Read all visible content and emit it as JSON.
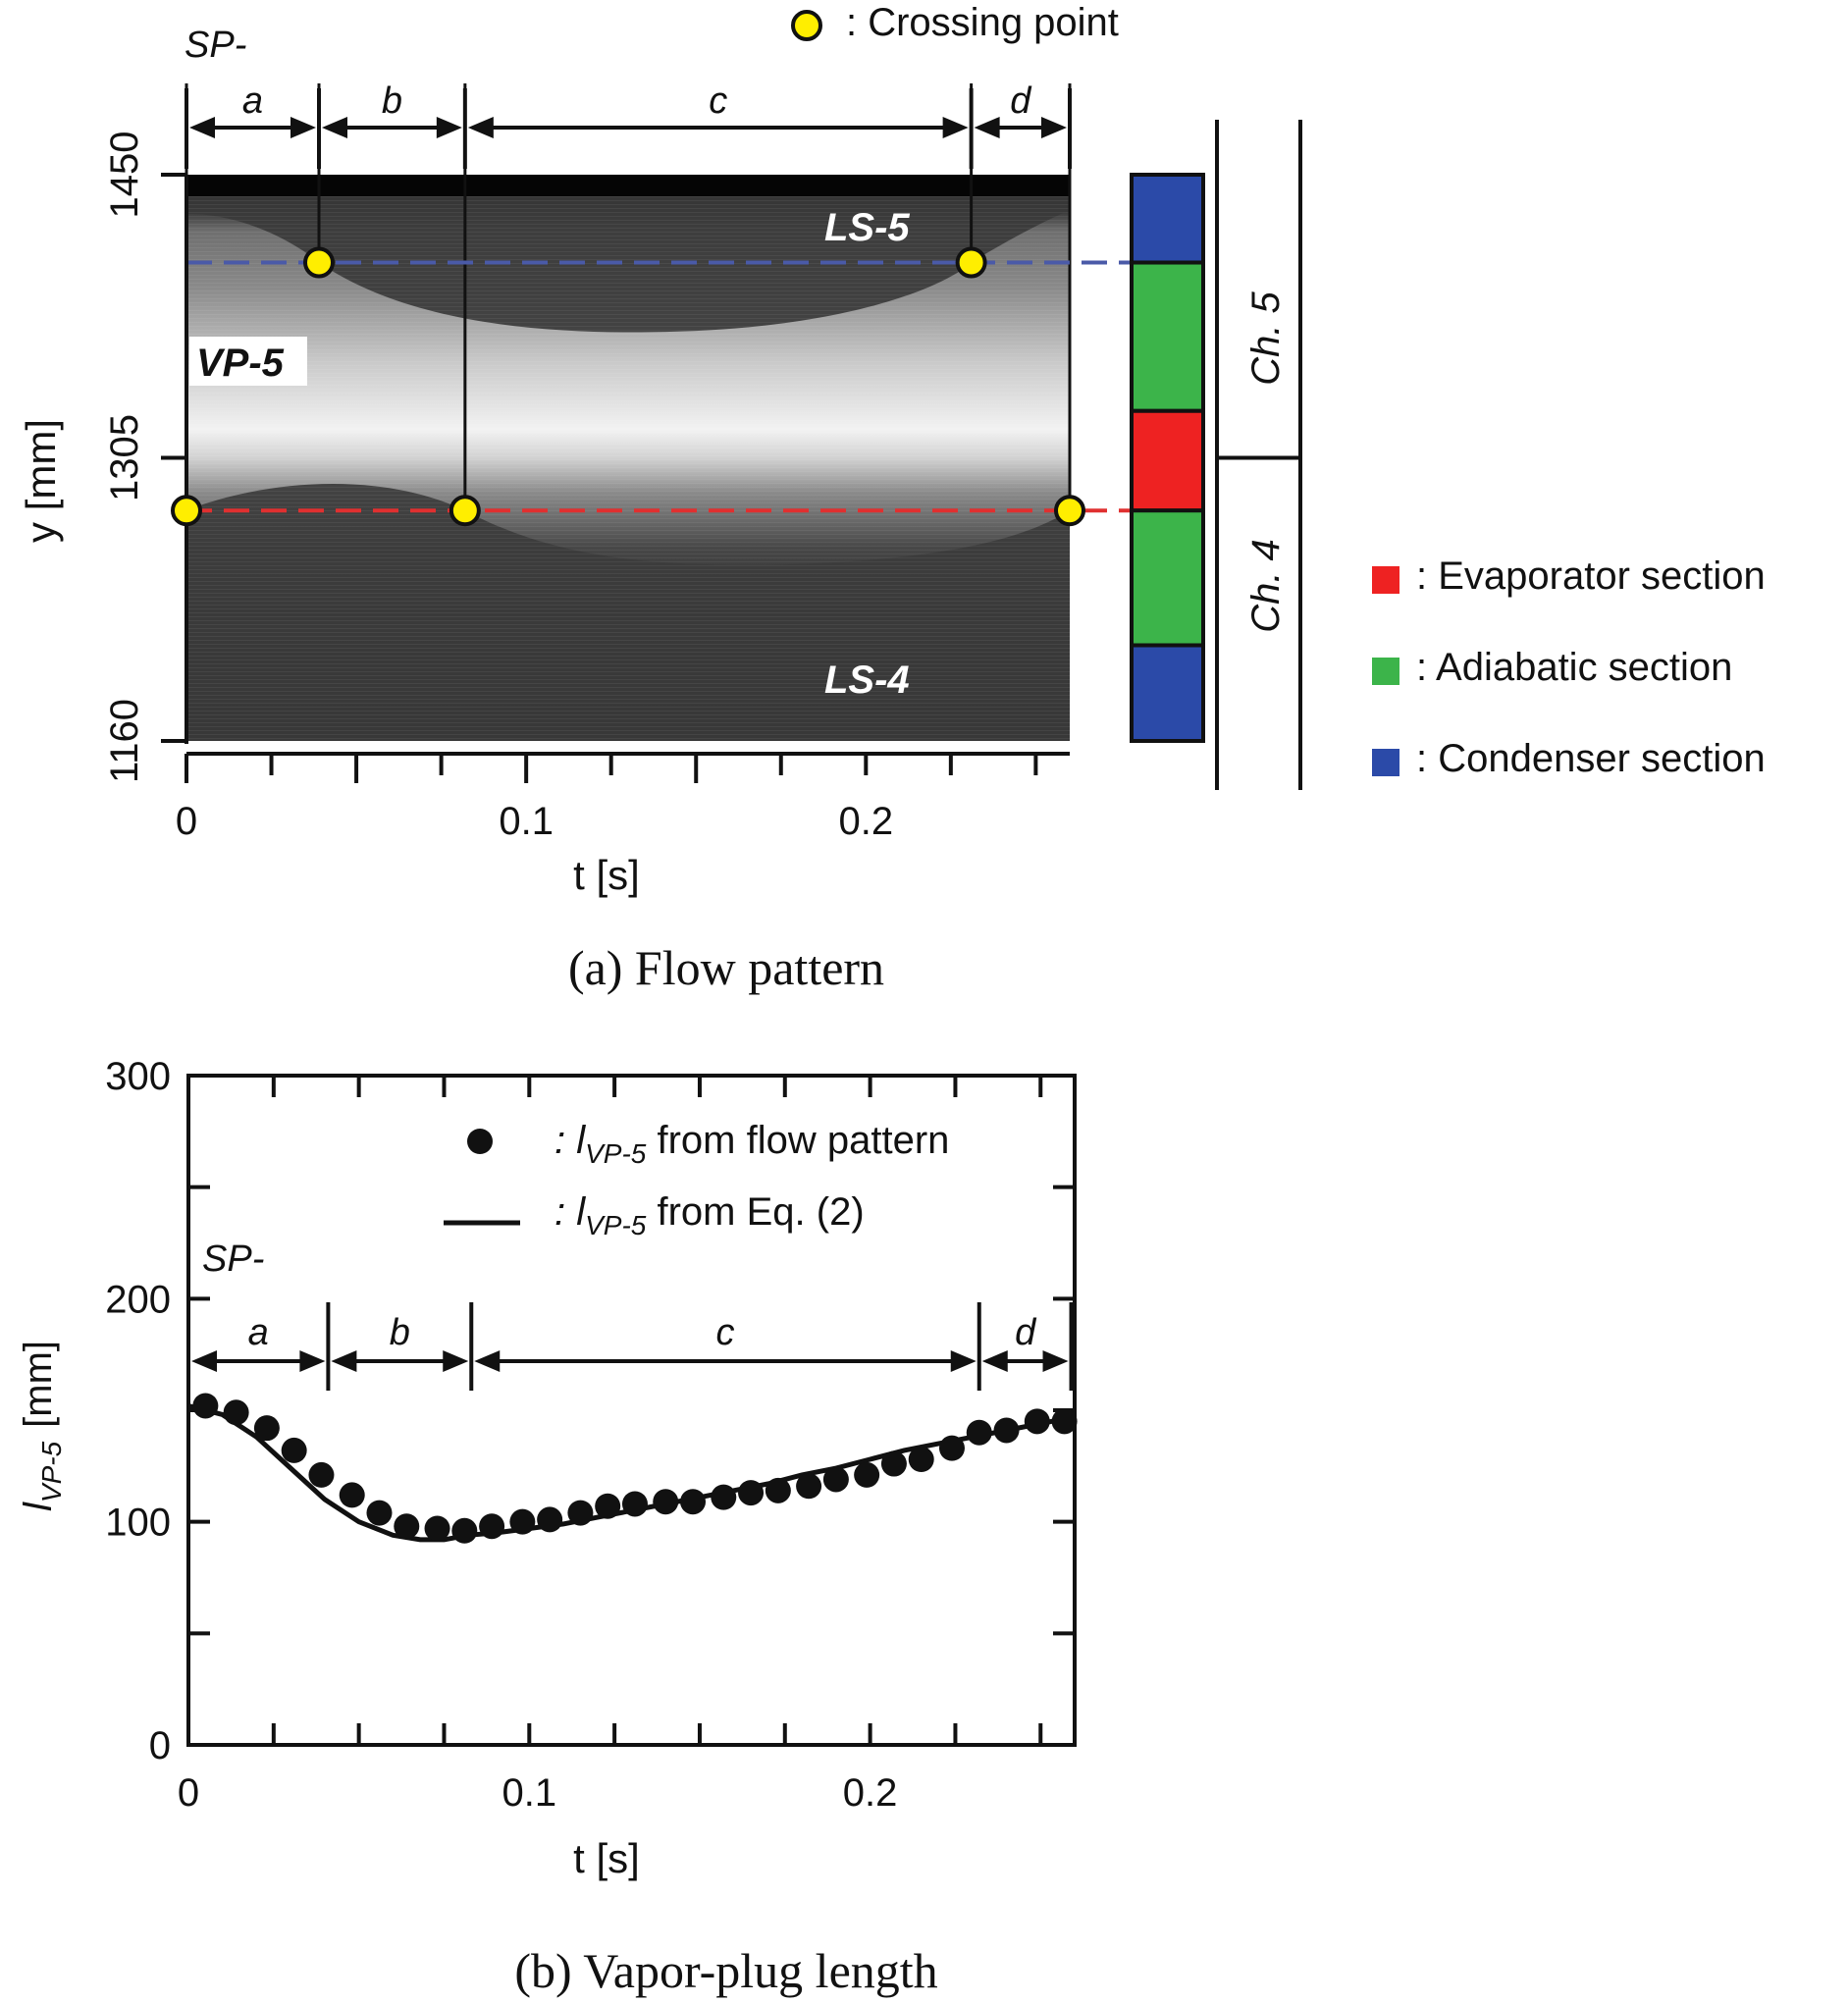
{
  "panel_a": {
    "caption": "(a) Flow pattern",
    "sp_label": "SP-",
    "interval_labels": [
      "a",
      "b",
      "c",
      "d"
    ],
    "crossing_legend": ": Crossing point",
    "slug_labels": {
      "upper": "LS-5",
      "lower": "LS-4",
      "plug": "VP-5"
    },
    "channel_labels": {
      "upper": "Ch. 5",
      "lower": "Ch. 4"
    },
    "section_legend": [
      {
        "label": ": Evaporator section",
        "color": "#ee2222"
      },
      {
        "label": ": Adiabatic section",
        "color": "#3cb44a"
      },
      {
        "label": ": Condenser section",
        "color": "#2b4aa8"
      }
    ],
    "colors": {
      "upper_dash": "#4a5aa8",
      "lower_dash": "#e03030",
      "crossing_point": "#ffee00"
    }
  },
  "panel_b": {
    "caption": "(b) Vapor-plug length",
    "sp_label": "SP-",
    "interval_labels": [
      "a",
      "b",
      "c",
      "d"
    ],
    "legend": {
      "points": {
        "prefix": ": l",
        "sub": "VP-5",
        "suffix": " from flow pattern"
      },
      "line": {
        "prefix": ": l",
        "sub": "VP-5",
        "suffix": " from Eq. (2)"
      }
    }
  },
  "chart_data": [
    {
      "type": "heatmap",
      "xlabel": "t  [s]",
      "ylabel": "y  [mm]",
      "xlim": [
        0,
        0.26
      ],
      "ylim": [
        1160,
        1450
      ],
      "xticks": [
        0,
        0.1,
        0.2
      ],
      "xtick_labels": [
        "0",
        "0.1",
        "0.2"
      ],
      "yticks": [
        1160,
        1305,
        1450
      ],
      "ytick_labels": [
        "1160",
        "1305",
        "1450"
      ],
      "interval_boundaries": [
        0,
        0.039,
        0.082,
        0.231,
        0.26
      ],
      "reference_levels": {
        "upper": 1405,
        "lower": 1278
      },
      "crossing_points": [
        {
          "t": 0.039,
          "y": 1405
        },
        {
          "t": 0.231,
          "y": 1405
        },
        {
          "t": 0,
          "y": 1278
        },
        {
          "t": 0.082,
          "y": 1278
        },
        {
          "t": 0.26,
          "y": 1278
        }
      ],
      "channel_divider_y": 1305,
      "sections": [
        {
          "name": "Condenser",
          "from": 1405,
          "to": 1450
        },
        {
          "name": "Adiabatic",
          "from": 1329,
          "to": 1405
        },
        {
          "name": "Evaporator",
          "from": 1278,
          "to": 1329
        },
        {
          "name": "Adiabatic",
          "from": 1209,
          "to": 1278
        },
        {
          "name": "Condenser",
          "from": 1160,
          "to": 1209
        }
      ]
    },
    {
      "type": "scatter",
      "xlabel": "t  [s]",
      "ylabel": {
        "main": "l",
        "sub": "VP-5",
        "unit": "[mm]"
      },
      "xlim": [
        0,
        0.26
      ],
      "ylim": [
        0,
        300
      ],
      "xticks": [
        0,
        0.1,
        0.2
      ],
      "xtick_labels": [
        "0",
        "0.1",
        "0.2"
      ],
      "yticks": [
        0,
        100,
        200,
        300
      ],
      "ytick_labels": [
        "0",
        "100",
        "200",
        "300"
      ],
      "interval_boundaries": [
        0,
        0.041,
        0.083,
        0.232,
        0.259
      ],
      "series": [
        {
          "kind": "points",
          "x": [
            0.005,
            0.014,
            0.023,
            0.031,
            0.039,
            0.048,
            0.056,
            0.064,
            0.073,
            0.081,
            0.089,
            0.098,
            0.106,
            0.115,
            0.123,
            0.131,
            0.14,
            0.148,
            0.157,
            0.165,
            0.173,
            0.182,
            0.19,
            0.199,
            0.207,
            0.215,
            0.224,
            0.232,
            0.24,
            0.249,
            0.257
          ],
          "y": [
            152,
            149,
            142,
            132,
            121,
            112,
            104,
            98,
            97,
            96,
            98,
            100,
            101,
            104,
            107,
            108,
            109,
            109,
            111,
            113,
            114,
            116,
            119,
            121,
            126,
            128,
            133,
            140,
            141,
            145,
            145
          ]
        },
        {
          "kind": "line",
          "x": [
            0,
            0.01,
            0.02,
            0.03,
            0.04,
            0.05,
            0.06,
            0.068,
            0.075,
            0.082,
            0.09,
            0.1,
            0.11,
            0.12,
            0.13,
            0.14,
            0.15,
            0.16,
            0.17,
            0.18,
            0.19,
            0.2,
            0.21,
            0.22,
            0.23,
            0.24,
            0.25,
            0.26
          ],
          "y": [
            152,
            148,
            138,
            124,
            110,
            100,
            94,
            92,
            92,
            94,
            95,
            97,
            99,
            102,
            105,
            108,
            111,
            114,
            117,
            121,
            124,
            128,
            132,
            135,
            138,
            141,
            144,
            147
          ]
        }
      ]
    }
  ]
}
